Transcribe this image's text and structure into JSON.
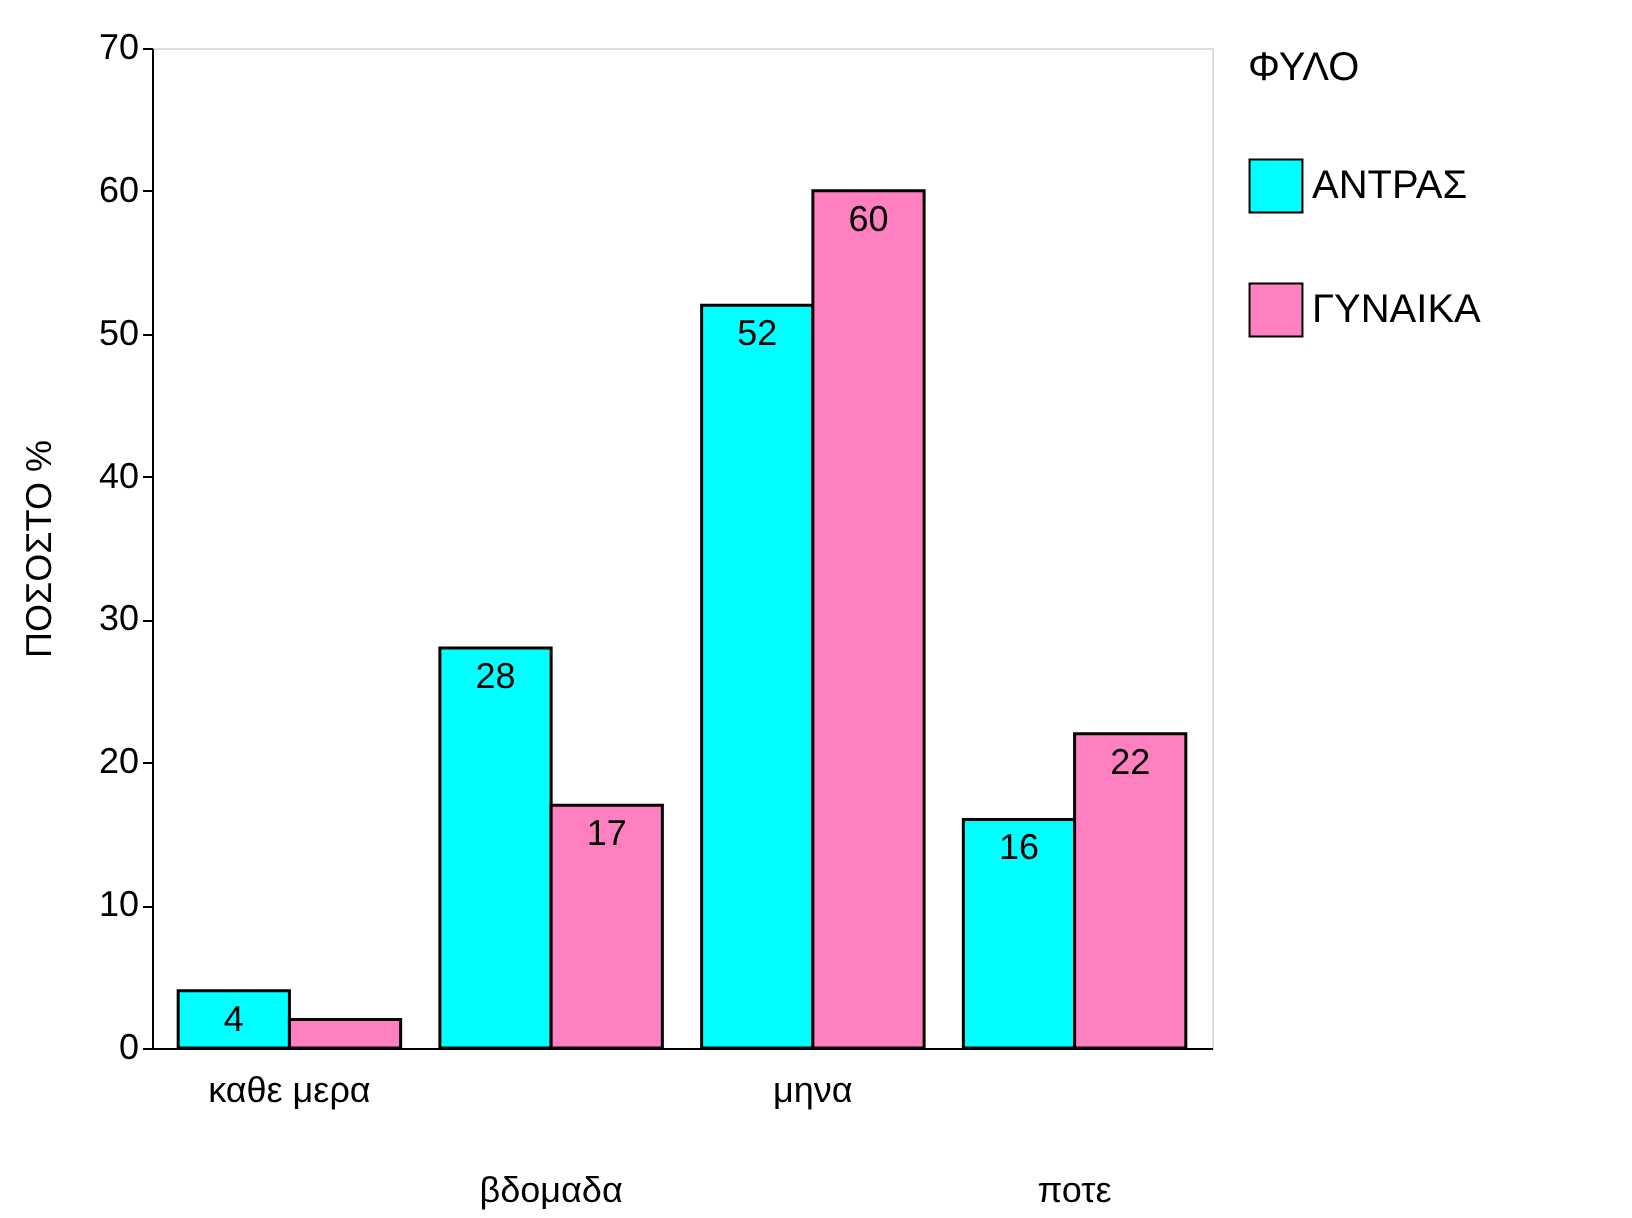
{
  "chart_data": {
    "type": "bar",
    "ylabel": "ΠΟΣΟΣΤΟ %",
    "legend_title": "ΦΥΛΟ",
    "legend": "right",
    "categories": [
      "καθε μερα",
      "βδομαδα",
      "μηνα",
      "ποτε"
    ],
    "series": [
      {
        "name": "ΑΝΤΡΑΣ",
        "color": "#00ffff",
        "values": [
          4,
          28,
          52,
          16
        ],
        "value_labels": [
          "4",
          "28",
          "52",
          "16"
        ]
      },
      {
        "name": "ΓΥΝΑΙΚΑ",
        "color": "#ff80c0",
        "values": [
          2,
          17,
          60,
          22
        ],
        "value_labels": [
          null,
          "17",
          "60",
          "22"
        ]
      }
    ],
    "ylim": [
      0,
      70
    ],
    "yticks": [
      0,
      10,
      20,
      30,
      40,
      50,
      60,
      70
    ],
    "grid": false
  }
}
